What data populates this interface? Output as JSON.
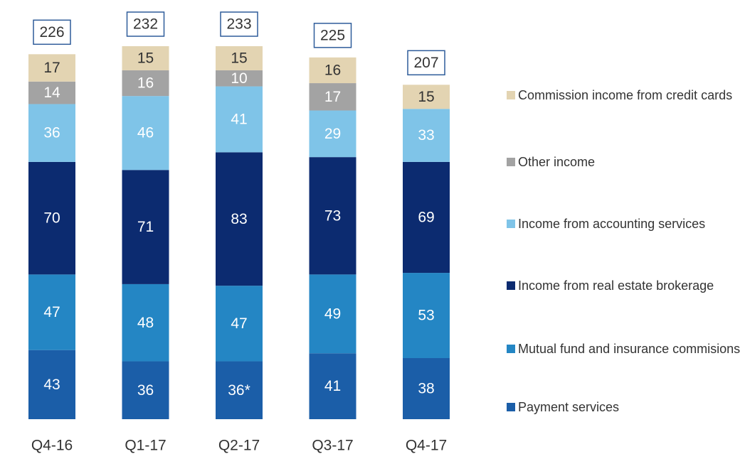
{
  "chart_data": {
    "type": "stacked_bar",
    "categories": [
      "Q4-16",
      "Q1-17",
      "Q2-17",
      "Q3-17",
      "Q4-17"
    ],
    "series": [
      {
        "name": "Payment services",
        "color": "#1b5ea8",
        "values": [
          43,
          36,
          36,
          41,
          38
        ],
        "value_labels": [
          "43",
          "36",
          "36*",
          "41",
          "38"
        ]
      },
      {
        "name": "Mutual fund and insurance commisions",
        "color": "#2486c4",
        "values": [
          47,
          48,
          47,
          49,
          53
        ]
      },
      {
        "name": "Income from real estate brokerage",
        "color": "#0c2b70",
        "values": [
          70,
          71,
          83,
          73,
          69
        ]
      },
      {
        "name": "Income from accounting services",
        "color": "#7fc4e8",
        "values": [
          36,
          46,
          41,
          29,
          33
        ]
      },
      {
        "name": "Other income",
        "color": "#a3a3a3",
        "values": [
          14,
          16,
          10,
          17,
          null
        ]
      },
      {
        "name": "Commission income from credit cards",
        "color": "#e3d4b2",
        "values": [
          17,
          15,
          15,
          16,
          15
        ]
      }
    ],
    "totals": [
      226,
      232,
      233,
      225,
      207
    ]
  }
}
